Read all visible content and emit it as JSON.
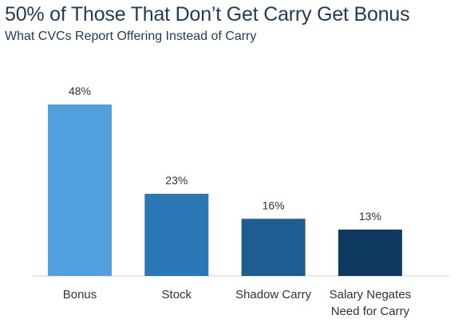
{
  "title": "50% of Those That Don’t Get Carry Get Bonus",
  "subtitle": "What CVCs Report Offering Instead of Carry",
  "chart_data": {
    "type": "bar",
    "title": "50% of Those That Don’t Get Carry Get Bonus",
    "subtitle": "What CVCs Report Offering Instead of Carry",
    "categories": [
      "Bonus",
      "Stock",
      "Shadow Carry",
      "Salary Negates Need for Carry"
    ],
    "category_label_lines": [
      [
        "Bonus"
      ],
      [
        "Stock"
      ],
      [
        "Shadow Carry"
      ],
      [
        "Salary Negates",
        "Need for Carry"
      ]
    ],
    "values": [
      48,
      23,
      16,
      13
    ],
    "value_labels": [
      "48%",
      "23%",
      "16%",
      "13%"
    ],
    "colors": [
      "#519fdc",
      "#2b77b5",
      "#1e5c91",
      "#0e3a62"
    ],
    "ylim": [
      0,
      48
    ],
    "grid": false,
    "legend": "none",
    "xlabel": "",
    "ylabel": ""
  }
}
